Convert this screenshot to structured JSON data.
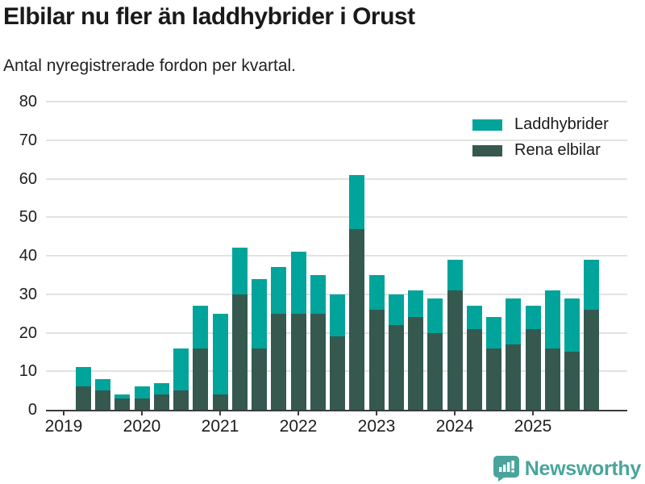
{
  "header": {
    "title": "Elbilar nu fler än laddhybrider i Orust",
    "subtitle": "Antal nyregistrerade fordon per kvartal."
  },
  "legend": [
    {
      "label": "Laddhybrider",
      "color": "#00a49b"
    },
    {
      "label": "Rena elbilar",
      "color": "#35594f"
    }
  ],
  "footer": {
    "brand": "Newsworthy"
  },
  "colors": {
    "laddhybrider": "#00a49b",
    "rena_elbilar": "#35594f",
    "gridline": "#e2e2e2",
    "axis": "#3b3b3b",
    "text": "#1a1a1a",
    "logo": "#4aa49d"
  },
  "chart_data": {
    "type": "bar",
    "stacked": true,
    "title": "Elbilar nu fler än laddhybrider i Orust",
    "subtitle": "Antal nyregistrerade fordon per kvartal.",
    "xlabel": "",
    "ylabel": "",
    "ylim": [
      0,
      80
    ],
    "yticks": [
      0,
      10,
      20,
      30,
      40,
      50,
      60,
      70,
      80
    ],
    "xticks": [
      "2019",
      "2020",
      "2021",
      "2022",
      "2023",
      "2024",
      "2025"
    ],
    "grid": true,
    "legend_position": "top-right",
    "categories": [
      "2019 Q2",
      "2019 Q3",
      "2019 Q4",
      "2020 Q1",
      "2020 Q2",
      "2020 Q3",
      "2020 Q4",
      "2021 Q1",
      "2021 Q2",
      "2021 Q3",
      "2021 Q4",
      "2022 Q1",
      "2022 Q2",
      "2022 Q3",
      "2022 Q4",
      "2023 Q1",
      "2023 Q2",
      "2023 Q3",
      "2023 Q4",
      "2024 Q1",
      "2024 Q2",
      "2024 Q3",
      "2024 Q4",
      "2025 Q1",
      "2025 Q2",
      "2025 Q3",
      "2025 Q4"
    ],
    "series": [
      {
        "name": "Rena elbilar",
        "color": "#35594f",
        "values": [
          6,
          5,
          3,
          3,
          4,
          5,
          16,
          4,
          30,
          16,
          25,
          25,
          25,
          19,
          47,
          26,
          22,
          24,
          20,
          31,
          21,
          16,
          17,
          21,
          16,
          15,
          26
        ]
      },
      {
        "name": "Laddhybrider",
        "color": "#00a49b",
        "values": [
          5,
          3,
          1,
          3,
          3,
          11,
          11,
          21,
          12,
          18,
          12,
          16,
          10,
          11,
          14,
          9,
          8,
          7,
          9,
          8,
          6,
          8,
          12,
          6,
          15,
          14,
          13
        ]
      }
    ]
  }
}
